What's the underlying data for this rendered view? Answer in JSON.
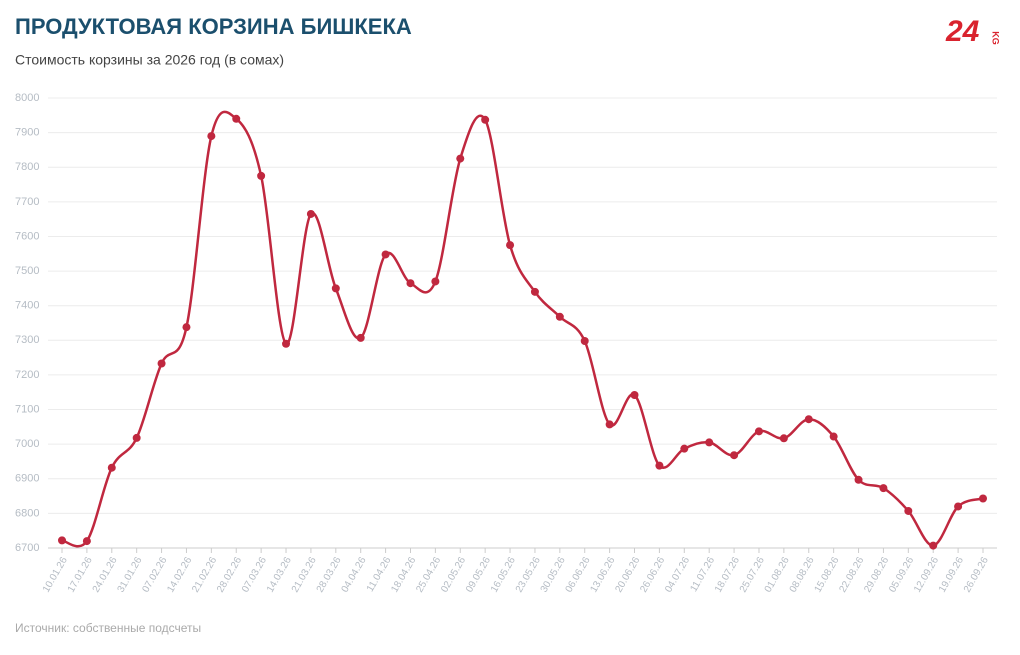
{
  "chart_data": {
    "type": "line",
    "title": "ПРОДУКТОВАЯ КОРЗИНА БИШКЕКА",
    "subtitle": "Стоимость корзины за 2026 год (в сомах)",
    "source": "Источник: собственные подсчеты",
    "categories": [
      "10.01.26",
      "17.01.26",
      "24.01.26",
      "31.01.26",
      "07.02.26",
      "14.02.26",
      "21.02.26",
      "28.02.26",
      "07.03.26",
      "14.03.26",
      "21.03.26",
      "28.03.26",
      "04.04.26",
      "11.04.26",
      "18.04.26",
      "25.04.26",
      "02.05.26",
      "09.05.26",
      "16.05.26",
      "23.05.26",
      "30.05.26",
      "06.06.26",
      "13.06.26",
      "20.06.26",
      "26.06.26",
      "04.07.26",
      "11.07.26",
      "18.07.26",
      "25.07.26",
      "01.08.26",
      "08.08.26",
      "15.08.26",
      "22.08.26",
      "29.08.26",
      "05.09.26",
      "12.09.26",
      "19.09.26",
      "26.09.26"
    ],
    "values": [
      6722,
      6720,
      6932,
      7018,
      7233,
      7338,
      7890,
      7940,
      7775,
      7290,
      7665,
      7450,
      7307,
      7548,
      7465,
      7470,
      7825,
      7937,
      7575,
      7440,
      7368,
      7298,
      7057,
      7142,
      6938,
      6987,
      7005,
      6968,
      7037,
      7017,
      7072,
      7022,
      6897,
      6873,
      6807,
      6707,
      6820,
      6843
    ],
    "color": "#c0283f",
    "ylim": [
      6700,
      8000
    ],
    "yticks": [
      6700,
      6800,
      6900,
      7000,
      7100,
      7200,
      7300,
      7400,
      7500,
      7600,
      7700,
      7800,
      7900,
      8000
    ],
    "grid": true
  },
  "logo": {
    "main": "24",
    "suffix": "KG"
  }
}
